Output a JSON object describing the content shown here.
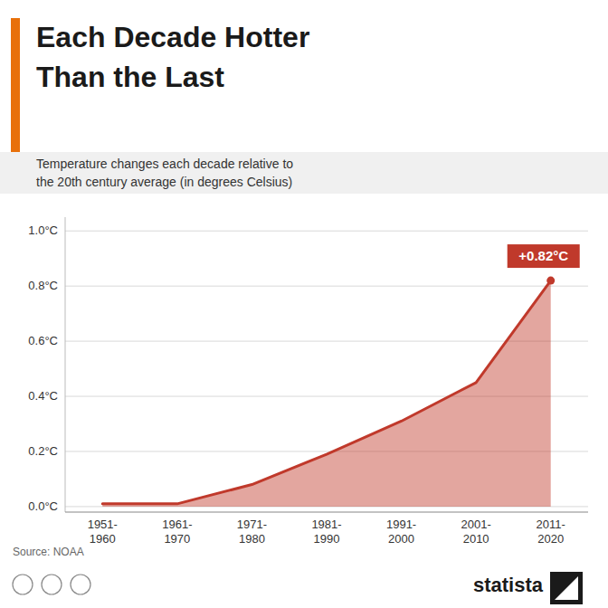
{
  "chart_data": {
    "type": "area",
    "title": [
      "Each Decade Hotter",
      "Than the Last"
    ],
    "subtitle": [
      "Temperature changes each decade relative to",
      "the 20th century average (in degrees Celsius)"
    ],
    "categories": [
      "1951-\n1960",
      "1961-\n1970",
      "1971-\n1980",
      "1981-\n1990",
      "1991-\n2000",
      "2001-\n2010",
      "2011-\n2020"
    ],
    "values": [
      0.01,
      0.01,
      0.08,
      0.19,
      0.31,
      0.45,
      0.82
    ],
    "color": "#c0392b",
    "annotation": "+0.82°C",
    "source": "Source: NOAA",
    "brand": "statista",
    "ylim": [
      -0.02,
      1.05
    ],
    "yticks": [
      {
        "value": 0.0,
        "label": "0.0°C"
      },
      {
        "value": 0.2,
        "label": "0.2°C"
      },
      {
        "value": 0.4,
        "label": "0.4°C"
      },
      {
        "value": 0.6,
        "label": "0.6°C"
      },
      {
        "value": 0.8,
        "label": "0.8°C"
      },
      {
        "value": 1.0,
        "label": "1.0°C"
      }
    ],
    "grid": true
  }
}
